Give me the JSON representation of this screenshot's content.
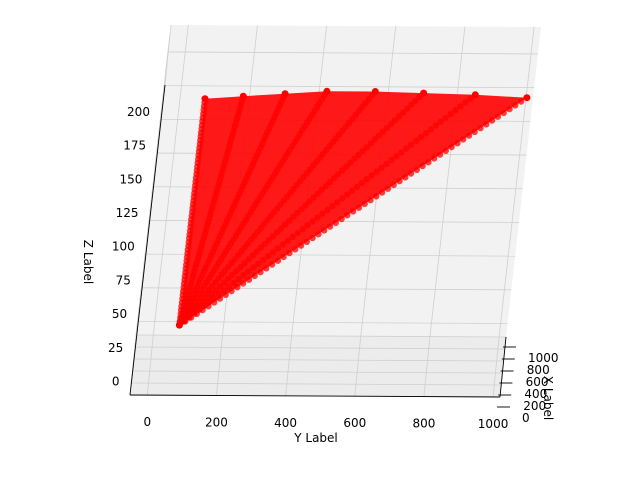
{
  "chart_data": {
    "type": "scatter",
    "projection": "3d",
    "xlabel": "X Label",
    "ylabel": "Y Label",
    "zlabel": "Z Label",
    "x_ticks": [
      "0",
      "200",
      "400",
      "600",
      "800",
      "1000"
    ],
    "y_ticks": [
      "0",
      "200",
      "400",
      "600",
      "800",
      "1000"
    ],
    "z_ticks": [
      "0",
      "25",
      "50",
      "75",
      "100",
      "125",
      "150",
      "175",
      "200"
    ],
    "xlim": [
      0,
      1000
    ],
    "ylim": [
      -50,
      1020
    ],
    "zlim": [
      -10,
      220
    ],
    "grid": true,
    "marker_color": "#ff0000",
    "series": [
      {
        "points": [
          {
            "x": 0,
            "y": 70,
            "z": 42
          },
          {
            "x": 0,
            "y": 70,
            "z": 210
          },
          {
            "x": 0,
            "y": 180,
            "z": 212
          },
          {
            "x": 0,
            "y": 300,
            "z": 214
          },
          {
            "x": 0,
            "y": 420,
            "z": 216
          },
          {
            "x": 0,
            "y": 560,
            "z": 216
          },
          {
            "x": 0,
            "y": 700,
            "z": 215
          },
          {
            "x": 0,
            "y": 850,
            "z": 214
          },
          {
            "x": 0,
            "y": 1000,
            "z": 212
          }
        ]
      }
    ]
  }
}
